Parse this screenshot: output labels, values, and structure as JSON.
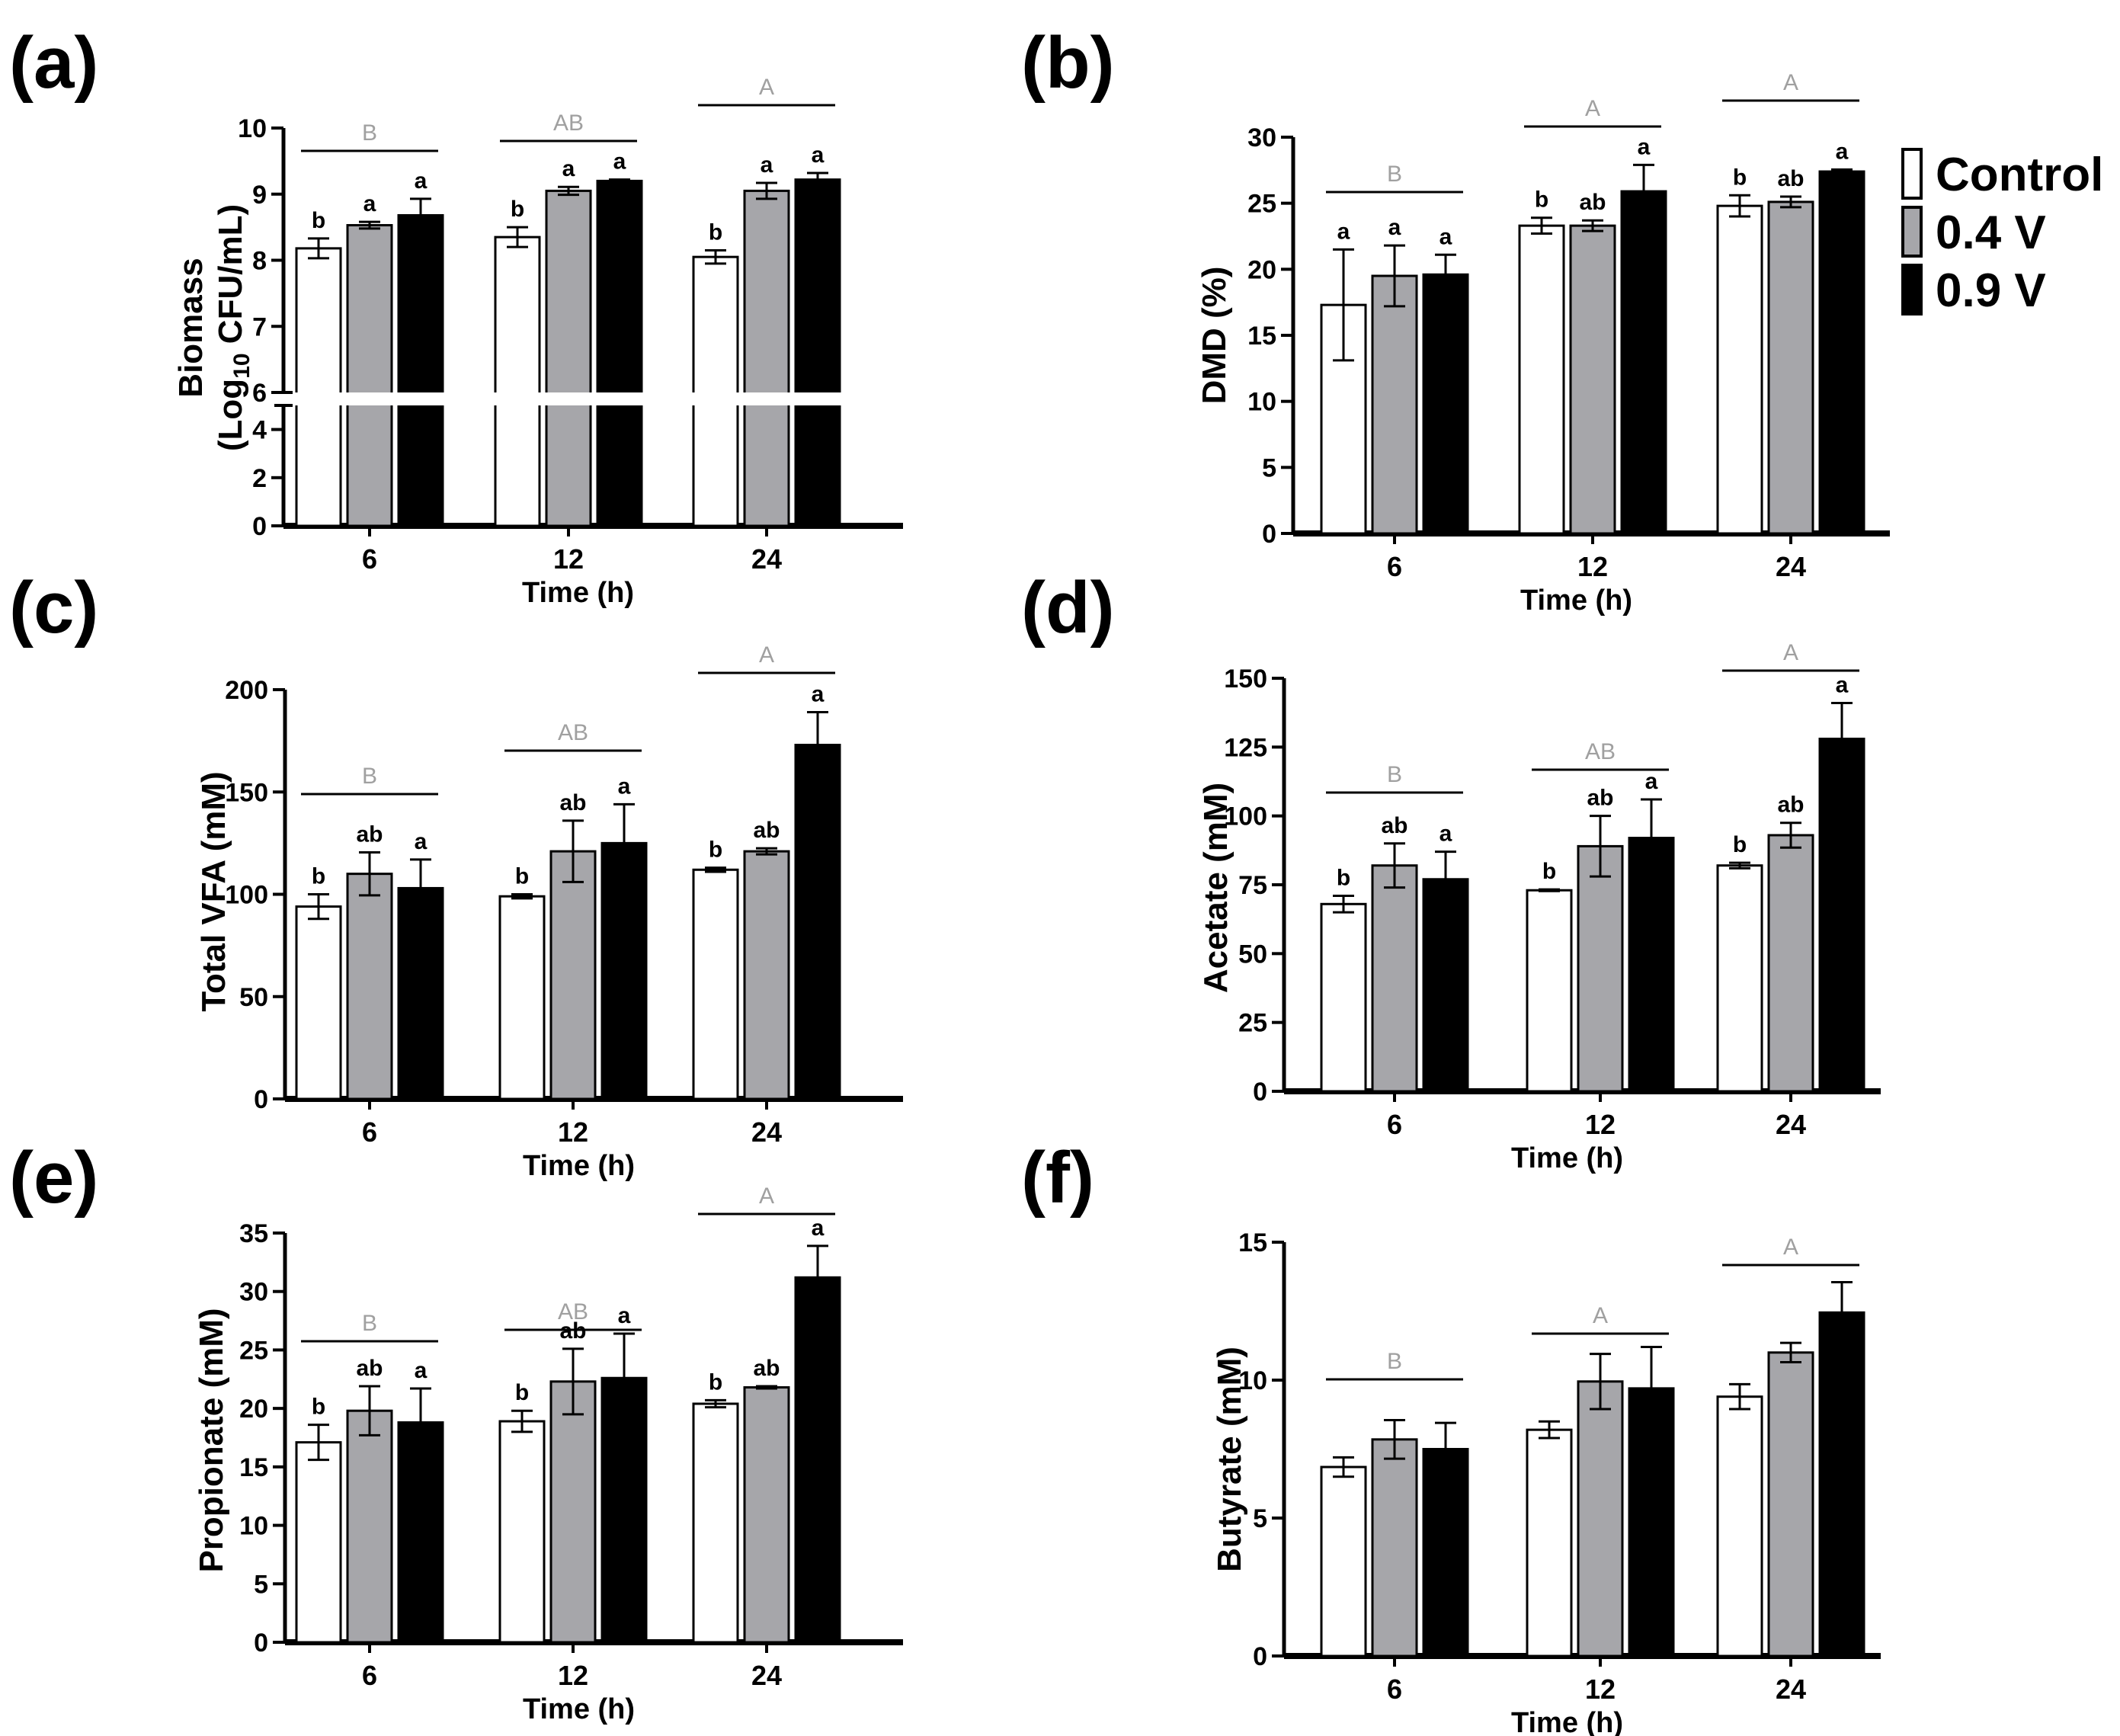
{
  "figure": {
    "x_label": "Time (h)",
    "legend": [
      {
        "name": "Control",
        "color": "#ffffff"
      },
      {
        "name": "0.4 V",
        "color": "#a6a6aa"
      },
      {
        "name": "0.9 V",
        "color": "#000000"
      }
    ],
    "colors": {
      "axis": "#000000",
      "group_letter": "#a0a0a0"
    }
  },
  "chart_data": [
    {
      "panel": "(a)",
      "type": "bar",
      "categories": [
        "6",
        "12",
        "24"
      ],
      "xlabel": "Time (h)",
      "ylabel_main": "Biomass",
      "ylabel_sub_pre": "(Log",
      "ylabel_sub_idx": "10",
      "ylabel_sub_post": " CFU/mL)",
      "axis_break": true,
      "yticks_lower": [
        "0",
        "2",
        "4"
      ],
      "yticks_upper": [
        "6",
        "7",
        "8",
        "9",
        "10"
      ],
      "ylim_lower": [
        0,
        5
      ],
      "ylim_upper": [
        6,
        10
      ],
      "series": [
        {
          "name": "Control",
          "values": [
            8.18,
            8.35,
            8.05
          ],
          "errors": [
            0.15,
            0.15,
            0.1
          ],
          "letters": [
            "b",
            "b",
            "b"
          ]
        },
        {
          "name": "0.4 V",
          "values": [
            8.53,
            9.05,
            9.05
          ],
          "errors": [
            0.05,
            0.06,
            0.12
          ],
          "letters": [
            "a",
            "a",
            "a"
          ]
        },
        {
          "name": "0.9 V",
          "values": [
            8.68,
            9.2,
            9.22
          ],
          "errors": [
            0.25,
            0.02,
            0.1
          ],
          "letters": [
            "a",
            "a",
            "a"
          ]
        }
      ],
      "group_letters": [
        "B",
        "AB",
        "A"
      ]
    },
    {
      "panel": "(b)",
      "type": "bar",
      "categories": [
        "6",
        "12",
        "24"
      ],
      "xlabel": "Time (h)",
      "ylabel": "DMD (%)",
      "ylim": [
        0,
        30
      ],
      "yticks": [
        "0",
        "5",
        "10",
        "15",
        "20",
        "25",
        "30"
      ],
      "series": [
        {
          "name": "Control",
          "values": [
            17.3,
            23.3,
            24.8
          ],
          "errors": [
            4.2,
            0.6,
            0.8
          ],
          "letters": [
            "a",
            "b",
            "b"
          ]
        },
        {
          "name": "0.4 V",
          "values": [
            19.5,
            23.3,
            25.1
          ],
          "errors": [
            2.3,
            0.4,
            0.4
          ],
          "letters": [
            "a",
            "ab",
            "ab"
          ]
        },
        {
          "name": "0.9 V",
          "values": [
            19.6,
            25.9,
            27.4
          ],
          "errors": [
            1.5,
            2.0,
            0.15
          ],
          "letters": [
            "a",
            "a",
            "a"
          ]
        }
      ],
      "group_letters": [
        "B",
        "A",
        "A"
      ]
    },
    {
      "panel": "(c)",
      "type": "bar",
      "categories": [
        "6",
        "12",
        "24"
      ],
      "xlabel": "Time (h)",
      "ylabel": "Total VFA (mM)",
      "ylim": [
        0,
        200
      ],
      "yticks": [
        "0",
        "50",
        "100",
        "150",
        "200"
      ],
      "series": [
        {
          "name": "Control",
          "values": [
            94,
            99,
            112
          ],
          "errors": [
            6,
            1,
            1
          ],
          "letters": [
            "b",
            "b",
            "b"
          ]
        },
        {
          "name": "0.4 V",
          "values": [
            110,
            121,
            121
          ],
          "errors": [
            10.5,
            15,
            1.5
          ],
          "letters": [
            "ab",
            "ab",
            "ab"
          ]
        },
        {
          "name": "0.9 V",
          "values": [
            103,
            125,
            173
          ],
          "errors": [
            14,
            19,
            16
          ],
          "letters": [
            "a",
            "a",
            "a"
          ]
        }
      ],
      "group_letters": [
        "B",
        "AB",
        "A"
      ]
    },
    {
      "panel": "(d)",
      "type": "bar",
      "categories": [
        "6",
        "12",
        "24"
      ],
      "xlabel": "Time (h)",
      "ylabel": "Acetate (mM)",
      "ylim": [
        0,
        150
      ],
      "yticks": [
        "0",
        "25",
        "50",
        "75",
        "100",
        "125",
        "150"
      ],
      "series": [
        {
          "name": "Control",
          "values": [
            68,
            73,
            82
          ],
          "errors": [
            3,
            0.3,
            1
          ],
          "letters": [
            "b",
            "b",
            "b"
          ]
        },
        {
          "name": "0.4 V",
          "values": [
            82,
            89,
            93
          ],
          "errors": [
            8,
            11,
            4.5
          ],
          "letters": [
            "ab",
            "ab",
            "ab"
          ]
        },
        {
          "name": "0.9 V",
          "values": [
            77,
            92,
            128
          ],
          "errors": [
            10,
            14,
            13
          ],
          "letters": [
            "a",
            "a",
            "a"
          ]
        }
      ],
      "group_letters": [
        "B",
        "AB",
        "A"
      ]
    },
    {
      "panel": "(e)",
      "type": "bar",
      "categories": [
        "6",
        "12",
        "24"
      ],
      "xlabel": "Time (h)",
      "ylabel": "Propionate (mM)",
      "ylim": [
        0,
        35
      ],
      "yticks": [
        "0",
        "5",
        "10",
        "15",
        "20",
        "25",
        "30",
        "35"
      ],
      "series": [
        {
          "name": "Control",
          "values": [
            17.1,
            18.9,
            20.4
          ],
          "errors": [
            1.5,
            0.9,
            0.3
          ],
          "letters": [
            "b",
            "b",
            "b"
          ]
        },
        {
          "name": "0.4 V",
          "values": [
            19.8,
            22.3,
            21.8
          ],
          "errors": [
            2.1,
            2.8,
            0.1
          ],
          "letters": [
            "ab",
            "ab",
            "ab"
          ]
        },
        {
          "name": "0.9 V",
          "values": [
            18.8,
            22.6,
            31.2
          ],
          "errors": [
            2.9,
            3.8,
            2.7
          ],
          "letters": [
            "a",
            "a",
            "a"
          ]
        }
      ],
      "group_letters": [
        "B",
        "AB",
        "A"
      ]
    },
    {
      "panel": "(f)",
      "type": "bar",
      "categories": [
        "6",
        "12",
        "24"
      ],
      "xlabel": "Time (h)",
      "ylabel": "Butyrate (mM)",
      "ylim": [
        0,
        15
      ],
      "yticks": [
        "0",
        "5",
        "10",
        "15"
      ],
      "series": [
        {
          "name": "Control",
          "values": [
            6.85,
            8.2,
            9.4
          ],
          "errors": [
            0.35,
            0.3,
            0.45
          ],
          "letters": [
            "",
            "",
            ""
          ]
        },
        {
          "name": "0.4 V",
          "values": [
            7.85,
            9.95,
            11.0
          ],
          "errors": [
            0.7,
            1.0,
            0.35
          ],
          "letters": [
            "",
            "",
            ""
          ]
        },
        {
          "name": "0.9 V",
          "values": [
            7.5,
            9.7,
            12.45
          ],
          "errors": [
            0.95,
            1.5,
            1.1
          ],
          "letters": [
            "",
            "",
            ""
          ]
        }
      ],
      "group_letters": [
        "B",
        "A",
        "A"
      ]
    }
  ]
}
